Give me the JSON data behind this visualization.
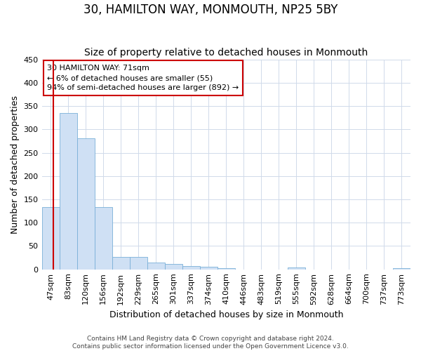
{
  "title": "30, HAMILTON WAY, MONMOUTH, NP25 5BY",
  "subtitle": "Size of property relative to detached houses in Monmouth",
  "xlabel": "Distribution of detached houses by size in Monmouth",
  "ylabel": "Number of detached properties",
  "bar_labels": [
    "47sqm",
    "83sqm",
    "120sqm",
    "156sqm",
    "192sqm",
    "229sqm",
    "265sqm",
    "301sqm",
    "337sqm",
    "374sqm",
    "410sqm",
    "446sqm",
    "483sqm",
    "519sqm",
    "555sqm",
    "592sqm",
    "628sqm",
    "664sqm",
    "700sqm",
    "737sqm",
    "773sqm"
  ],
  "bar_values": [
    134,
    335,
    281,
    133,
    26,
    26,
    15,
    11,
    7,
    5,
    3,
    0,
    0,
    0,
    4,
    0,
    0,
    0,
    0,
    0,
    3
  ],
  "bar_color": "#cfe0f4",
  "bar_edge_color": "#7ab0d8",
  "ylim": [
    0,
    450
  ],
  "yticks": [
    0,
    50,
    100,
    150,
    200,
    250,
    300,
    350,
    400,
    450
  ],
  "annotation_text": "30 HAMILTON WAY: 71sqm\n← 6% of detached houses are smaller (55)\n94% of semi-detached houses are larger (892) →",
  "annotation_box_color": "#ffffff",
  "annotation_box_edge": "#cc0000",
  "footer_line1": "Contains HM Land Registry data © Crown copyright and database right 2024.",
  "footer_line2": "Contains public sector information licensed under the Open Government Licence v3.0.",
  "bg_color": "#ffffff",
  "grid_color": "#d0daea",
  "title_fontsize": 12,
  "subtitle_fontsize": 10,
  "axis_label_fontsize": 9,
  "tick_fontsize": 8,
  "annotation_fontsize": 8,
  "footer_fontsize": 6.5,
  "red_line_xdata": 0.593
}
